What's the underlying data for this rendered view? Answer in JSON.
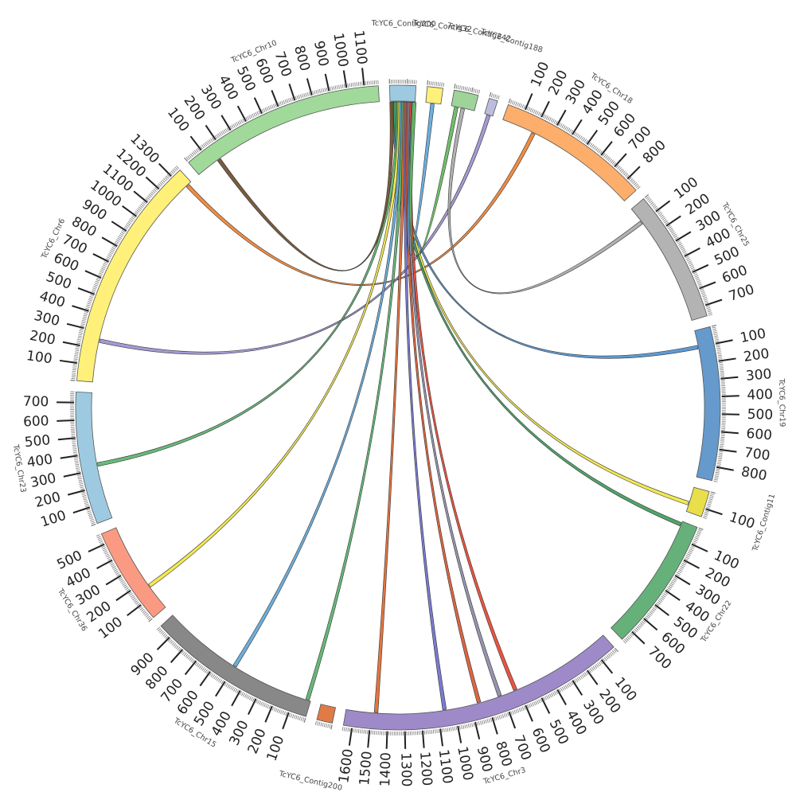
{
  "diagram": {
    "type": "circos",
    "tick_step": 100,
    "segments": [
      {
        "name": "TcYC6_Contig200",
        "label": "TcYC6_Contig200",
        "length": 150,
        "color": "#9ecae1",
        "ticks": []
      },
      {
        "name": "TcYC6_Contig32",
        "label": "TcYC6_Contig32",
        "length": 90,
        "color": "#fff07a",
        "ticks": []
      },
      {
        "name": "TcYC6_Contig242",
        "label": "TcYC6_Contig242",
        "length": 140,
        "color": "#9ed39a",
        "ticks": []
      },
      {
        "name": "TcYC6_Contig188",
        "label": "TcYC6_Contig188",
        "length": 50,
        "color": "#bcbddc",
        "ticks": []
      },
      {
        "name": "TcYC6_Chr18",
        "label": "TcYC6_Chr18",
        "length": 880,
        "color": "#fdae6b",
        "ticks": [
          "100",
          "200",
          "300",
          "400",
          "500",
          "600",
          "700",
          "800"
        ]
      },
      {
        "name": "TcYC6_Chr25",
        "label": "TcYC6_Chr25",
        "length": 760,
        "color": "#b3b3b3",
        "ticks": [
          "100",
          "200",
          "300",
          "400",
          "500",
          "600",
          "700"
        ]
      },
      {
        "name": "TcYC6_Chr19",
        "label": "TcYC6_Chr19",
        "length": 880,
        "color": "#6699cc",
        "ticks": [
          "100",
          "200",
          "300",
          "400",
          "500",
          "600",
          "700",
          "800"
        ]
      },
      {
        "name": "TcYC6_Contig11",
        "label": "TcYC6_Contig11",
        "length": 150,
        "color": "#e8df4a",
        "ticks": [
          "100"
        ]
      },
      {
        "name": "TcYC6_Chr22",
        "label": "TcYC6_Chr22",
        "length": 770,
        "color": "#66b07a",
        "ticks": [
          "100",
          "200",
          "300",
          "400",
          "500",
          "600",
          "700"
        ]
      },
      {
        "name": "TcYC6_Chr3",
        "label": "TcYC6_Chr3",
        "length": 1650,
        "color": "#9e8ac8",
        "ticks": [
          "100",
          "200",
          "300",
          "400",
          "500",
          "600",
          "700",
          "800",
          "900",
          "1000",
          "1100",
          "1200",
          "1300",
          "1400",
          "1500",
          "1600"
        ]
      },
      {
        "name": "TcYC6_Contig200",
        "label": "TcYC6_Contig200",
        "length": 90,
        "color": "#e07b48",
        "ticks": []
      },
      {
        "name": "TcYC6_Chr15",
        "label": "TcYC6_Chr15",
        "length": 980,
        "color": "#888888",
        "ticks": [
          "100",
          "200",
          "300",
          "400",
          "500",
          "600",
          "700",
          "800",
          "900"
        ]
      },
      {
        "name": "TcYC6_Chr36",
        "label": "TcYC6_Chr36",
        "length": 560,
        "color": "#fb9a82",
        "ticks": [
          "100",
          "200",
          "300",
          "400",
          "500"
        ]
      },
      {
        "name": "TcYC6_Chr23",
        "label": "TcYC6_Chr23",
        "length": 760,
        "color": "#9ecae1",
        "ticks": [
          "100",
          "200",
          "300",
          "400",
          "500",
          "600",
          "700"
        ]
      },
      {
        "name": "TcYC6_Chr6",
        "label": "TcYC6_Chr6",
        "length": 1360,
        "color": "#fff07a",
        "ticks": [
          "100",
          "200",
          "300",
          "400",
          "500",
          "600",
          "700",
          "800",
          "900",
          "1000",
          "1100",
          "1200",
          "1300"
        ]
      },
      {
        "name": "TcYC6_Chr10",
        "label": "TcYC6_Chr10",
        "length": 1180,
        "color": "#a1d99b",
        "ticks": [
          "100",
          "200",
          "300",
          "400",
          "500",
          "600",
          "700",
          "800",
          "900",
          "1000",
          "1100"
        ]
      }
    ],
    "links": [
      {
        "from_segment": "TcYC6_Chr6",
        "from_position": 1330,
        "to_segment": "TcYC6_Chr18",
        "to_position": 200,
        "color": "#ee7f2d"
      },
      {
        "from_segment": "TcYC6_Chr6",
        "from_position": 250,
        "to_segment": "TcYC6_Contig188",
        "to_position": 25,
        "color": "#9b8fcf"
      },
      {
        "from_segment": "TcYC6_Chr25",
        "from_position": 100,
        "to_segment": "TcYC6_Contig242",
        "to_position": 70,
        "color": "#a9a9a9"
      },
      {
        "from_segment": "TcYC6_Chr19",
        "from_position": 100,
        "to_segment": "TcYC6_Contig200",
        "to_position": 20,
        "color": "#4d8fcf"
      },
      {
        "from_segment": "TcYC6_Contig11",
        "from_position": 100,
        "to_segment": "TcYC6_Contig200",
        "to_position": 40,
        "color": "#f2e63f"
      },
      {
        "from_segment": "TcYC6_Chr22",
        "from_position": 20,
        "to_segment": "TcYC6_Contig200",
        "to_position": 30,
        "color": "#3d9a5a"
      },
      {
        "from_segment": "TcYC6_Chr23",
        "from_position": 330,
        "to_segment": "TcYC6_Contig200",
        "to_position": 50,
        "color": "#59b36d"
      },
      {
        "from_segment": "TcYC6_Chr36",
        "from_position": 160,
        "to_segment": "TcYC6_Contig200",
        "to_position": 60,
        "color": "#f2e63f"
      },
      {
        "from_segment": "TcYC6_Chr15",
        "from_position": 500,
        "to_segment": "TcYC6_Contig200",
        "to_position": 70,
        "color": "#5da5d8"
      },
      {
        "from_segment": "TcYC6_Chr15",
        "from_position": 20,
        "to_segment": "TcYC6_Contig200",
        "to_position": 80,
        "color": "#56b06a"
      },
      {
        "from_segment": "TcYC6_Chr3",
        "from_position": 1470,
        "to_segment": "TcYC6_Contig200",
        "to_position": 90,
        "color": "#e0662a"
      },
      {
        "from_segment": "TcYC6_Chr3",
        "from_position": 1060,
        "to_segment": "TcYC6_Contig200",
        "to_position": 100,
        "color": "#6b6bc8"
      },
      {
        "from_segment": "TcYC6_Chr3",
        "from_position": 850,
        "to_segment": "TcYC6_Contig200",
        "to_position": 110,
        "color": "#d9542c"
      },
      {
        "from_segment": "TcYC6_Chr3",
        "from_position": 720,
        "to_segment": "TcYC6_Contig200",
        "to_position": 120,
        "color": "#8a8aa6"
      },
      {
        "from_segment": "TcYC6_Chr3",
        "from_position": 620,
        "to_segment": "TcYC6_Contig200",
        "to_position": 130,
        "color": "#e8412c"
      },
      {
        "from_segment": "TcYC6_Contig32",
        "from_position": 40,
        "to_segment": "TcYC6_Contig200",
        "to_position": 140,
        "color": "#5da5d8"
      },
      {
        "from_segment": "TcYC6_Contig242",
        "from_position": 30,
        "to_segment": "TcYC6_Contig200",
        "to_position": 145,
        "color": "#5fb85a"
      },
      {
        "from_segment": "TcYC6_Chr10",
        "from_position": 150,
        "to_segment": "TcYC6_Contig200",
        "to_position": 10,
        "color": "#6a4a2a"
      }
    ]
  }
}
